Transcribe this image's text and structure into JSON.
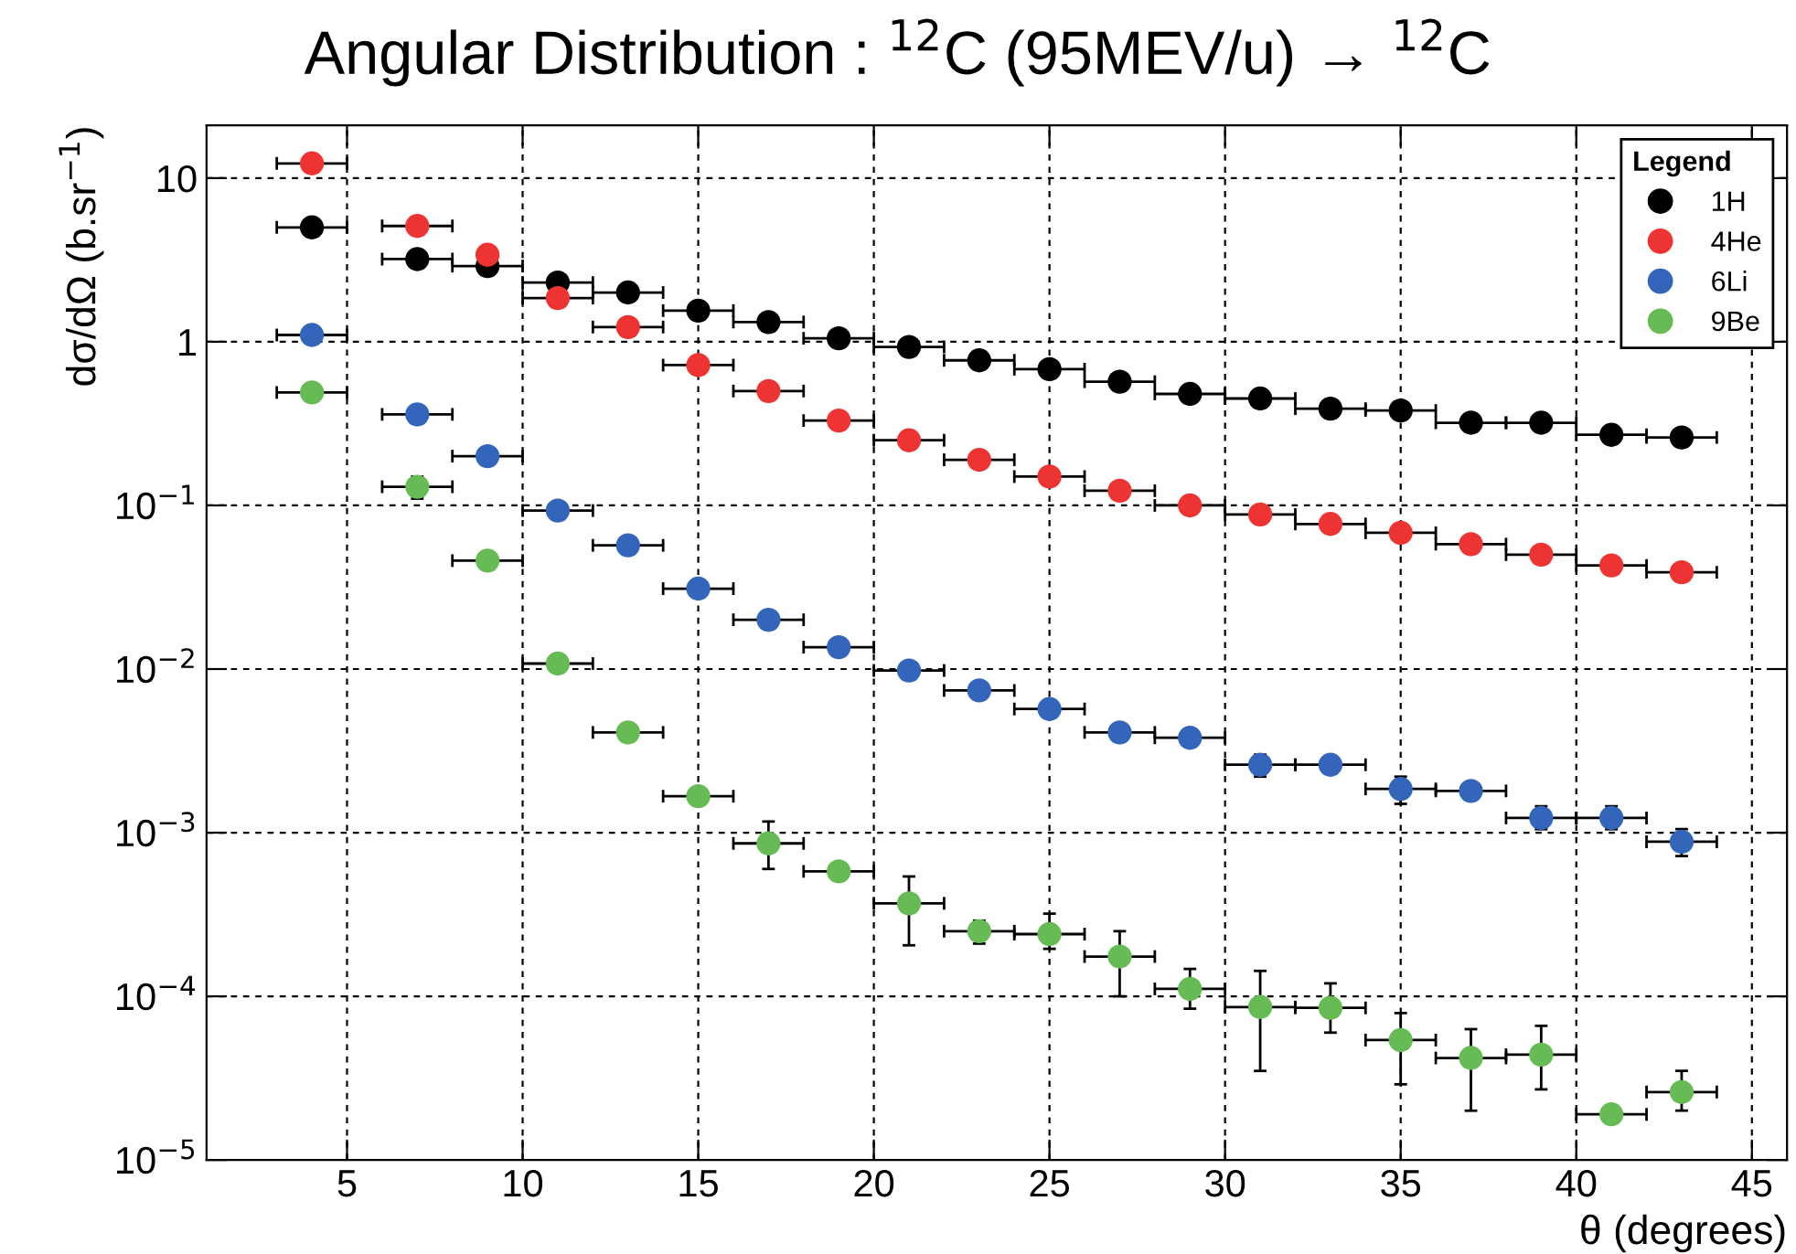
{
  "chart_data": {
    "type": "scatter",
    "title": "Angular Distribution : $^{12}$C (95MEV/u) → $^{12}$C",
    "xlabel": "θ (degrees)",
    "ylabel": "dσ/dΩ (b.sr$^{−1}$)",
    "legend_title": "Legend",
    "log": "y",
    "grid": true,
    "legend": "top right",
    "marker": "circle",
    "x": [
      4,
      7,
      9,
      11,
      13,
      15,
      17,
      19,
      21,
      23,
      25,
      27,
      29,
      31,
      33,
      35,
      37,
      39,
      41,
      43
    ],
    "xlim": [
      1,
      46
    ],
    "xticks": [
      5,
      10,
      15,
      20,
      25,
      30,
      35,
      40,
      45
    ],
    "ylim": [
      1e-05,
      21
    ],
    "yticks": [
      {
        "value": 1e-05,
        "label": "10$^{−5}$"
      },
      {
        "value": 0.0001,
        "label": "10$^{−4}$"
      },
      {
        "value": 0.001,
        "label": "10$^{−3}$"
      },
      {
        "value": 0.01,
        "label": "10$^{−2}$"
      },
      {
        "value": 0.1,
        "label": "10$^{−1}$"
      },
      1,
      10
    ],
    "series": [
      {
        "name": "1H",
        "color": "#000000",
        "xerrors": [
          1,
          1,
          1,
          1,
          1,
          1,
          1,
          1,
          1,
          1,
          1,
          1,
          1,
          1,
          1,
          1,
          1,
          1,
          1,
          1
        ],
        "values": [
          5.0,
          3.2,
          2.9,
          2.3,
          2.0,
          1.55,
          1.32,
          1.05,
          0.93,
          0.77,
          0.68,
          0.57,
          0.48,
          0.45,
          0.39,
          0.38,
          0.32,
          0.32,
          0.27,
          0.26
        ]
      },
      {
        "name": "4He",
        "color": "#ee3333",
        "xerrors": [
          1,
          1,
          null,
          1,
          1,
          1,
          1,
          1,
          1,
          1,
          1,
          1,
          1,
          1,
          1,
          1,
          1,
          1,
          1,
          1
        ],
        "values": [
          12.3,
          5.1,
          3.4,
          1.85,
          1.23,
          0.72,
          0.5,
          0.33,
          0.25,
          0.19,
          0.15,
          0.123,
          0.1,
          0.088,
          0.077,
          0.068,
          0.058,
          0.05,
          0.043,
          0.039
        ]
      },
      {
        "name": "6Li",
        "color": "#3366bb",
        "xerrors": [
          1,
          1,
          1,
          1,
          1,
          1,
          1,
          1,
          1,
          1,
          1,
          1,
          1,
          1,
          1,
          1,
          1,
          1,
          1,
          1
        ],
        "values": [
          1.1,
          0.36,
          0.2,
          0.093,
          0.057,
          0.031,
          0.02,
          0.0136,
          0.0098,
          0.0074,
          0.0057,
          0.0041,
          0.0038,
          0.0026,
          0.0026,
          0.00185,
          0.0018,
          0.00123,
          0.00123,
          0.00088
        ],
        "errors": [
          null,
          null,
          null,
          null,
          null,
          null,
          null,
          null,
          null,
          null,
          null,
          null,
          null,
          [
            0.0022,
            0.003
          ],
          null,
          [
            0.0015,
            0.0022
          ],
          null,
          [
            0.00105,
            0.00145
          ],
          [
            0.00105,
            0.00145
          ],
          [
            0.00072,
            0.00105
          ]
        ]
      },
      {
        "name": "9Be",
        "color": "#66bb55",
        "xerrors": [
          1,
          1,
          1,
          1,
          1,
          1,
          1,
          1,
          1,
          1,
          1,
          1,
          1,
          1,
          1,
          1,
          1,
          1,
          1,
          1
        ],
        "values": [
          0.49,
          0.13,
          0.046,
          0.0108,
          0.0041,
          0.00167,
          0.00086,
          0.00058,
          0.00037,
          0.00025,
          0.00024,
          0.000175,
          0.000111,
          8.6e-05,
          8.5e-05,
          5.4e-05,
          4.2e-05,
          4.4e-05,
          1.9e-05,
          2.6e-05
        ],
        "errors": [
          null,
          [
            0.11,
            0.15
          ],
          null,
          null,
          null,
          null,
          [
            0.0006,
            0.00117
          ],
          null,
          [
            0.000205,
            0.00054
          ],
          [
            0.00021,
            0.00029
          ],
          [
            0.000195,
            0.00032
          ],
          [
            0.0001,
            0.00025
          ],
          [
            8.4e-05,
            0.000147
          ],
          [
            3.5e-05,
            0.000143
          ],
          [
            6e-05,
            0.00012
          ],
          [
            2.9e-05,
            7.9e-05
          ],
          [
            2e-05,
            6.3e-05
          ],
          [
            2.7e-05,
            6.6e-05
          ],
          null,
          [
            2e-05,
            3.5e-05
          ]
        ]
      }
    ]
  }
}
